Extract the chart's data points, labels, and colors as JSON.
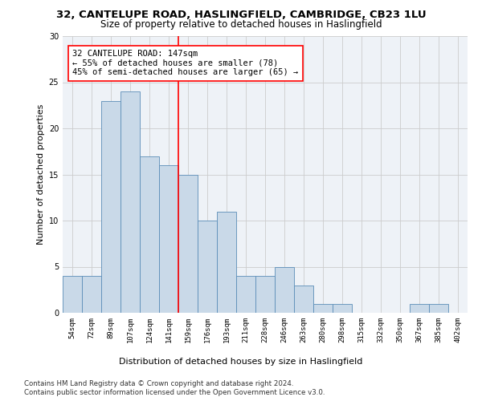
{
  "title_line1": "32, CANTELUPE ROAD, HASLINGFIELD, CAMBRIDGE, CB23 1LU",
  "title_line2": "Size of property relative to detached houses in Haslingfield",
  "xlabel": "Distribution of detached houses by size in Haslingfield",
  "ylabel": "Number of detached properties",
  "bar_labels": [
    "54sqm",
    "72sqm",
    "89sqm",
    "107sqm",
    "124sqm",
    "141sqm",
    "159sqm",
    "176sqm",
    "193sqm",
    "211sqm",
    "228sqm",
    "246sqm",
    "263sqm",
    "280sqm",
    "298sqm",
    "315sqm",
    "332sqm",
    "350sqm",
    "367sqm",
    "385sqm",
    "402sqm"
  ],
  "bar_heights": [
    4,
    4,
    23,
    24,
    17,
    16,
    15,
    10,
    11,
    4,
    4,
    5,
    3,
    1,
    1,
    0,
    0,
    0,
    1,
    1,
    0
  ],
  "bar_color": "#c9d9e8",
  "bar_edge_color": "#5b8db8",
  "vline_x": 5.5,
  "vline_color": "red",
  "annotation_text": "32 CANTELUPE ROAD: 147sqm\n← 55% of detached houses are smaller (78)\n45% of semi-detached houses are larger (65) →",
  "annotation_box_color": "white",
  "annotation_box_edge_color": "red",
  "ylim": [
    0,
    30
  ],
  "yticks": [
    0,
    5,
    10,
    15,
    20,
    25,
    30
  ],
  "grid_color": "#cccccc",
  "bg_color": "#eef2f7",
  "footer_line1": "Contains HM Land Registry data © Crown copyright and database right 2024.",
  "footer_line2": "Contains public sector information licensed under the Open Government Licence v3.0.",
  "title_fontsize": 9.5,
  "subtitle_fontsize": 8.5,
  "axis_label_fontsize": 8,
  "tick_fontsize": 6.5,
  "annotation_fontsize": 7.5,
  "footer_fontsize": 6.2,
  "ylabel_fontsize": 8
}
